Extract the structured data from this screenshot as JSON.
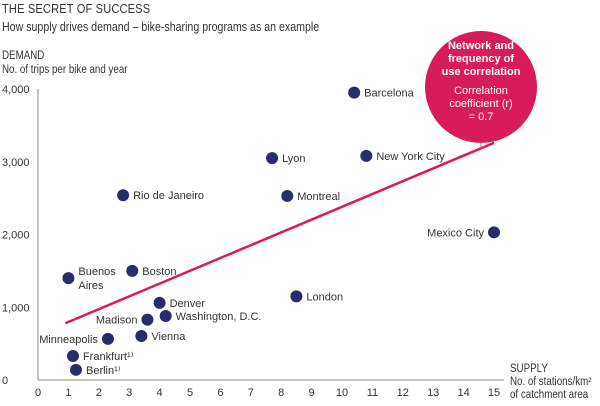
{
  "chart_data": {
    "type": "scatter",
    "title": "THE SECRET OF SUCCESS",
    "subtitle": "How supply drives demand – bike-sharing programs as an example",
    "ylabel": "DEMAND",
    "ylabel_sub": "No. of trips per bike and year",
    "xlabel": "SUPPLY",
    "xlabel_sub1": "No. of stations/km²",
    "xlabel_sub2": "of catchment area",
    "xlim": [
      0,
      15
    ],
    "ylim": [
      0,
      4000
    ],
    "xticks": [
      "0",
      "1",
      "2",
      "3",
      "4",
      "5",
      "6",
      "7",
      "8",
      "9",
      "10",
      "11",
      "12",
      "13",
      "14",
      "15"
    ],
    "yticks": [
      {
        "v": 0,
        "label": "0"
      },
      {
        "v": 1000,
        "label": "1,000"
      },
      {
        "v": 2000,
        "label": "2,000"
      },
      {
        "v": 3000,
        "label": "3,000"
      },
      {
        "v": 4000,
        "label": "4,000"
      }
    ],
    "grid": false,
    "points": [
      {
        "name": "Barcelona",
        "x": 10.4,
        "y": 3950,
        "pos": "right"
      },
      {
        "name": "Lyon",
        "x": 7.7,
        "y": 3050,
        "pos": "right"
      },
      {
        "name": "New York City",
        "x": 10.8,
        "y": 3080,
        "pos": "right"
      },
      {
        "name": "Rio de Janeiro",
        "x": 2.8,
        "y": 2540,
        "pos": "right"
      },
      {
        "name": "Montreal",
        "x": 8.2,
        "y": 2530,
        "pos": "right"
      },
      {
        "name": "Mexico City",
        "x": 15.0,
        "y": 2030,
        "pos": "left"
      },
      {
        "name": "Buenos\nAires",
        "x": 1.0,
        "y": 1400,
        "pos": "right2"
      },
      {
        "name": "Boston",
        "x": 3.1,
        "y": 1500,
        "pos": "right"
      },
      {
        "name": "London",
        "x": 8.5,
        "y": 1150,
        "pos": "right"
      },
      {
        "name": "Denver",
        "x": 4.0,
        "y": 1060,
        "pos": "right"
      },
      {
        "name": "Madison",
        "x": 3.6,
        "y": 830,
        "pos": "left"
      },
      {
        "name": "Washington, D.C.",
        "x": 4.2,
        "y": 880,
        "pos": "right"
      },
      {
        "name": "Vienna",
        "x": 3.4,
        "y": 605,
        "pos": "right"
      },
      {
        "name": "Minneapolis",
        "x": 2.3,
        "y": 565,
        "pos": "left"
      },
      {
        "name": "Frankfurt¹⁾",
        "x": 1.15,
        "y": 330,
        "pos": "right"
      },
      {
        "name": "Berlin¹⁾",
        "x": 1.25,
        "y": 140,
        "pos": "right"
      }
    ],
    "trendline": {
      "x": [
        0.9,
        15.0
      ],
      "y": [
        780,
        3260
      ]
    },
    "annotation": {
      "heading": [
        "Network and",
        "frequency of",
        "use correlation"
      ],
      "body": [
        "Correlation",
        "coefficient (r)",
        "= 0.7"
      ]
    },
    "colors": {
      "point": "#2a2b6a",
      "trend": "#d81b5a",
      "bubble": "#d81b5a",
      "axis": "#888888"
    }
  }
}
